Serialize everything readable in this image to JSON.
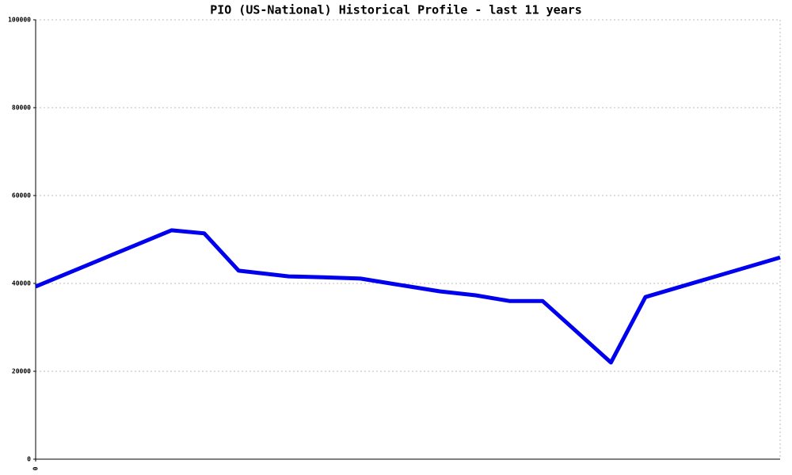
{
  "chart_data": {
    "type": "line",
    "title": "PIO (US-National) Historical Profile - last 11 years",
    "x": [
      0,
      2.01,
      2.49,
      3.0,
      3.74,
      4.25,
      4.8,
      5.32,
      5.97,
      6.5,
      7.0,
      7.49,
      8.5,
      9.01,
      11
    ],
    "series": [
      {
        "color": "#0000ee",
        "values": [
          39300,
          52100,
          51400,
          42900,
          41600,
          41400,
          41100,
          39800,
          38200,
          37300,
          36000,
          36000,
          22000,
          36900,
          45900
        ]
      }
    ],
    "xlim": [
      0,
      11
    ],
    "xticks": [
      0
    ],
    "ylim": [
      0,
      100000
    ],
    "yticks": [
      0,
      20000,
      40000,
      60000,
      80000,
      100000
    ],
    "grid": true
  }
}
